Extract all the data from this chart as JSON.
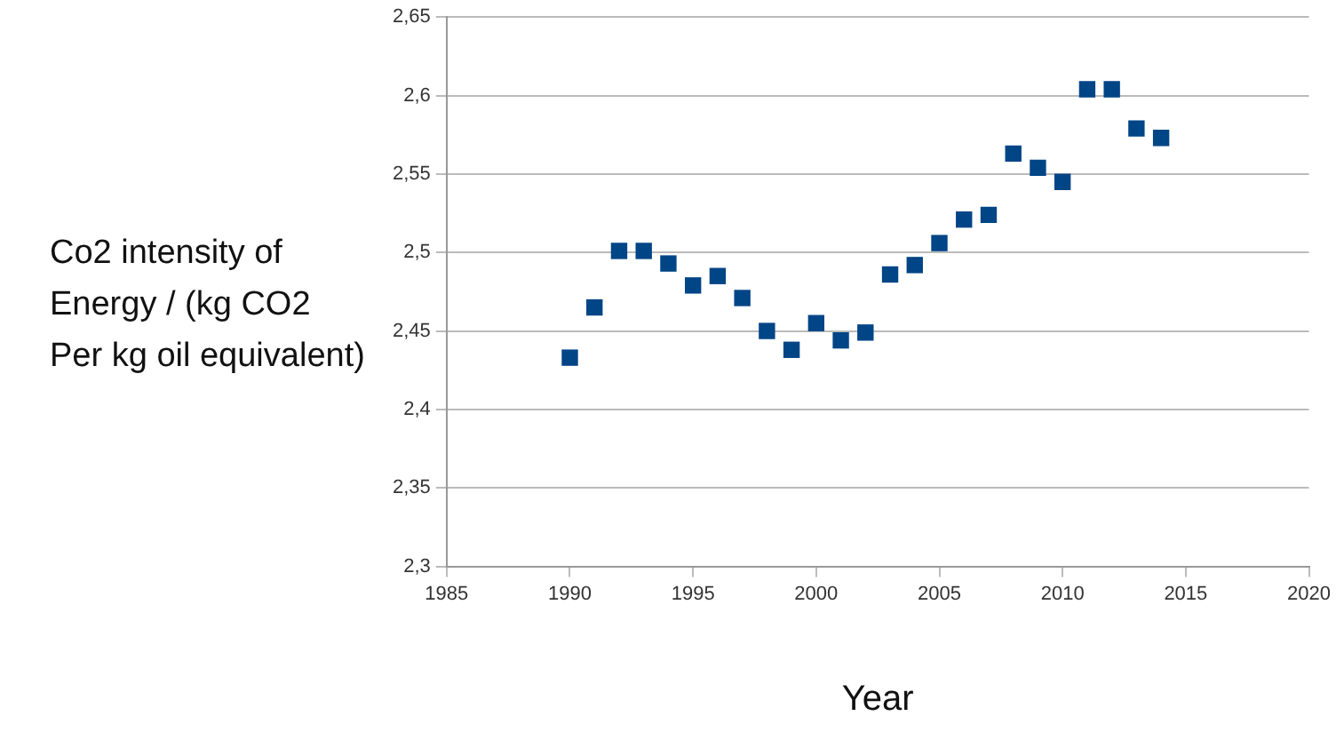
{
  "chart_data": {
    "type": "scatter",
    "xlabel": "Year",
    "ylabel": "Co2 intensity of\nEnergy / (kg CO2\nPer kg oil equivalent)",
    "x": [
      1990,
      1991,
      1992,
      1993,
      1994,
      1995,
      1996,
      1997,
      1998,
      1999,
      2000,
      2001,
      2002,
      2003,
      2004,
      2005,
      2006,
      2007,
      2008,
      2009,
      2010,
      2011,
      2012,
      2013,
      2014
    ],
    "series": [
      {
        "color": "#004586",
        "values": [
          2.433,
          2.465,
          2.501,
          2.501,
          2.493,
          2.479,
          2.485,
          2.471,
          2.45,
          2.438,
          2.455,
          2.444,
          2.449,
          2.486,
          2.492,
          2.506,
          2.521,
          2.524,
          2.563,
          2.554,
          2.545,
          2.604,
          2.604,
          2.579,
          2.573
        ]
      }
    ],
    "xlim": [
      1985,
      2020
    ],
    "xticks": [
      1985,
      1990,
      1995,
      2000,
      2005,
      2010,
      2015,
      2020
    ],
    "ylim": [
      2.3,
      2.65
    ],
    "yticks": [
      {
        "value": 2.3,
        "label": "2,3"
      },
      {
        "value": 2.35,
        "label": "2,35"
      },
      {
        "value": 2.4,
        "label": "2,4"
      },
      {
        "value": 2.45,
        "label": "2,45"
      },
      {
        "value": 2.5,
        "label": "2,5"
      },
      {
        "value": 2.55,
        "label": "2,55"
      },
      {
        "value": 2.6,
        "label": "2,6"
      },
      {
        "value": 2.65,
        "label": "2,65"
      }
    ],
    "grid": "y",
    "legend": false,
    "marker": "square"
  }
}
